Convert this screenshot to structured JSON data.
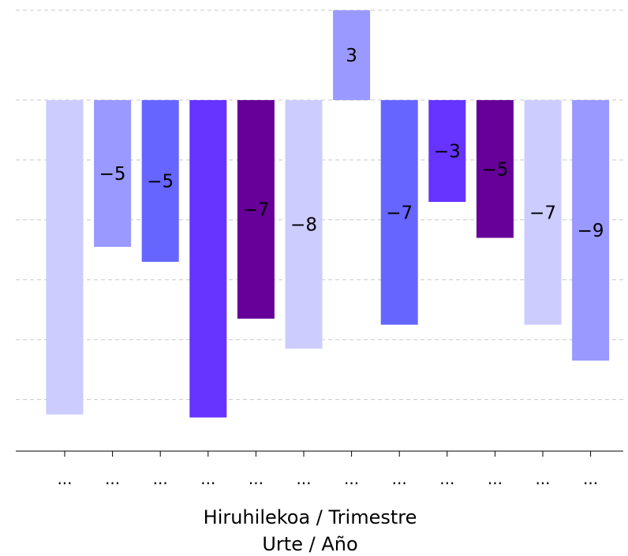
{
  "chart_data": {
    "type": "bar",
    "categories": [
      "...",
      "...",
      "...",
      "...",
      "...",
      "...",
      "...",
      "...",
      "...",
      "...",
      "...",
      "..."
    ],
    "values": [
      -10.5,
      -4.9,
      -5.4,
      -10.6,
      -7.3,
      -8.3,
      3,
      -7.5,
      -3.4,
      -4.6,
      -7.5,
      -8.7
    ],
    "data_labels": [
      "",
      "−5",
      "−5",
      "",
      "−7",
      "−8",
      "3",
      "−7",
      "−3",
      "−5",
      "−7",
      "−9"
    ],
    "colors": [
      "#ccccff",
      "#9999ff",
      "#6666ff",
      "#6633ff",
      "#660099",
      "#ccccff",
      "#9999ff",
      "#6666ff",
      "#6633ff",
      "#660099",
      "#ccccff",
      "#9999ff"
    ],
    "xlabel": [
      "Hiruhilekoa / Trimestre",
      "Urte / Año"
    ],
    "ylim": [
      -11.3,
      3
    ],
    "grid": true,
    "grid_values": [
      3,
      0,
      -2,
      -4,
      -6,
      -8,
      -10
    ],
    "legend": "none"
  }
}
